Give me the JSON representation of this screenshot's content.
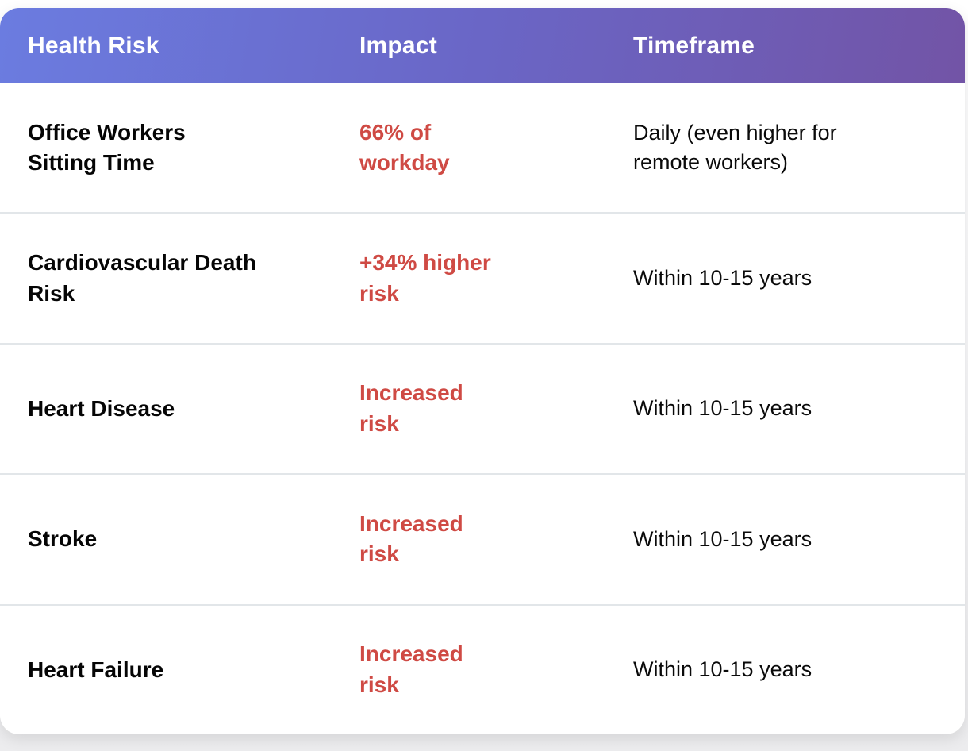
{
  "table": {
    "columns": [
      {
        "label": "Health Risk"
      },
      {
        "label": "Impact"
      },
      {
        "label": "Timeframe"
      }
    ],
    "rows": [
      {
        "health_risk": "Office Workers\nSitting Time",
        "impact": "66% of\nworkday",
        "timeframe": "Daily (even higher for\nremote workers)"
      },
      {
        "health_risk": "Cardiovascular Death\nRisk",
        "impact": "+34% higher\nrisk",
        "timeframe": "Within 10-15 years"
      },
      {
        "health_risk": "Heart Disease",
        "impact": "Increased\nrisk",
        "timeframe": "Within 10-15 years"
      },
      {
        "health_risk": "Stroke",
        "impact": "Increased\nrisk",
        "timeframe": "Within 10-15 years"
      },
      {
        "health_risk": "Heart Failure",
        "impact": "Increased\nrisk",
        "timeframe": "Within 10-15 years"
      }
    ],
    "colors": {
      "header_gradient_start": "#6b7ce0",
      "header_gradient_end": "#7254a6",
      "header_text": "#ffffff",
      "impact_text": "#cf4a44",
      "body_text": "#0a0a0a",
      "row_divider": "#e2e6e9",
      "card_background": "#ffffff"
    }
  }
}
